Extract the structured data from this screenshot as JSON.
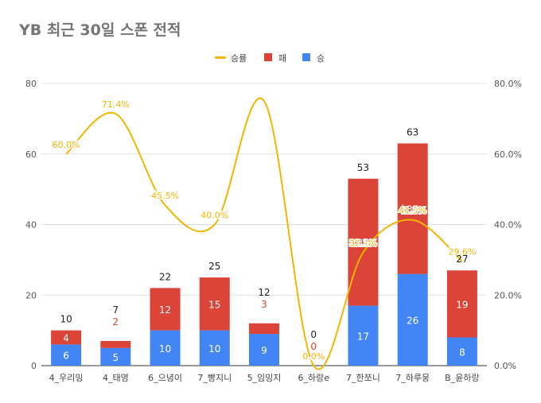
{
  "chart_data": {
    "type": "bar",
    "title": "YB 최근 30일 스폰 전적",
    "categories": [
      "4_우리밍",
      "4_태영",
      "6_으녕이",
      "7_빵지니",
      "5_임밍지",
      "6_하랑e",
      "7_한쪼니",
      "7_하루뭉",
      "B_윤하랑"
    ],
    "series": [
      {
        "name": "승",
        "color": "#4285f4",
        "values": [
          6,
          5,
          10,
          10,
          9,
          0,
          17,
          26,
          8
        ]
      },
      {
        "name": "패",
        "color": "#db4437",
        "values": [
          4,
          2,
          12,
          15,
          3,
          0,
          36,
          37,
          19
        ]
      },
      {
        "name": "승률",
        "color": "#f4b400",
        "type": "line",
        "axis": "right",
        "values": [
          60.0,
          71.4,
          45.5,
          40.0,
          75.0,
          0.0,
          32.1,
          41.3,
          29.6
        ],
        "labels": [
          "60.0%",
          "71.4%",
          "45.5%",
          "40.0%",
          null,
          "0.0%",
          "32.1%",
          "41.3%",
          "29.6%"
        ]
      }
    ],
    "totals": [
      10,
      7,
      22,
      25,
      12,
      0,
      53,
      63,
      27
    ],
    "y_left": {
      "min": 0,
      "max": 80,
      "ticks": [
        0,
        20,
        40,
        60,
        80
      ]
    },
    "y_right": {
      "min": 0,
      "max": 80,
      "ticks": [
        "0.0%",
        "20.0%",
        "40.0%",
        "60.0%",
        "80.0%"
      ]
    },
    "legend_position": "top",
    "legend": [
      "승률",
      "패",
      "승"
    ],
    "grid": true,
    "stacked": true
  }
}
